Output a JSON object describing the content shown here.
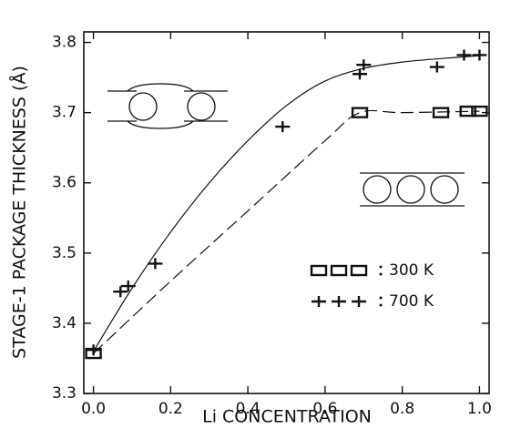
{
  "chart_data": {
    "type": "scatter",
    "x_label": "Li CONCENTRATION",
    "y_label": "STAGE-1 PACKAGE THICKNESS (Å)",
    "xlim": [
      -0.025,
      1.025
    ],
    "ylim": [
      3.3,
      3.815
    ],
    "xticks": [
      {
        "value": 0,
        "label": "0.0"
      },
      0.2,
      0.4,
      0.6,
      0.8,
      {
        "value": 1,
        "label": "1.0"
      }
    ],
    "yticks": [
      3.3,
      3.4,
      3.5,
      3.6,
      3.7,
      3.8
    ],
    "series": [
      {
        "name": "300 K",
        "marker": "square",
        "color": "#111",
        "x": [
          0.0,
          0.69,
          0.9,
          0.97,
          1.0
        ],
        "values": [
          3.357,
          3.7,
          3.7,
          3.702,
          3.702
        ]
      },
      {
        "name": "700 K",
        "marker": "plus",
        "color": "#111",
        "x": [
          0.0,
          0.07,
          0.09,
          0.16,
          0.49,
          0.69,
          0.7,
          0.89,
          0.96,
          1.0
        ],
        "values": [
          3.362,
          3.445,
          3.453,
          3.485,
          3.68,
          3.755,
          3.768,
          3.765,
          3.782,
          3.782
        ]
      }
    ],
    "fits": [
      {
        "dashed": false,
        "color": "#111",
        "x": [
          0,
          0.1,
          0.2,
          0.3,
          0.4,
          0.5,
          0.6,
          0.7,
          0.8,
          0.9,
          1.0
        ],
        "values": [
          3.36,
          3.45,
          3.53,
          3.6,
          3.66,
          3.71,
          3.745,
          3.763,
          3.772,
          3.777,
          3.781
        ]
      },
      {
        "dashed": true,
        "color": "#111",
        "x": [
          0,
          0.2,
          0.4,
          0.6,
          0.69,
          0.8,
          1.0
        ],
        "values": [
          3.357,
          3.46,
          3.56,
          3.66,
          3.7,
          3.7,
          3.702
        ]
      }
    ]
  }
}
